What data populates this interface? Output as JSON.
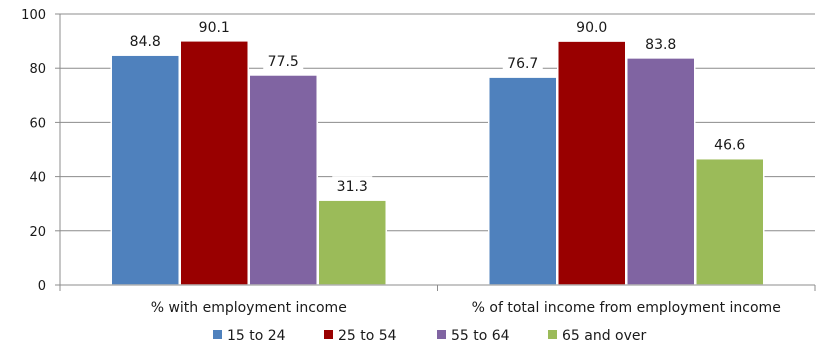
{
  "chart_data": {
    "type": "bar",
    "title": "",
    "xlabel": "",
    "ylabel": "",
    "ylim": [
      0,
      100
    ],
    "yticks": [
      0,
      20,
      40,
      60,
      80,
      100
    ],
    "grid": true,
    "legend_position": "bottom",
    "categories": [
      "% with employment income",
      "% of total income from employment income"
    ],
    "series": [
      {
        "name": "15 to 24",
        "color": "#4f81bd",
        "values": [
          84.8,
          76.7
        ],
        "labels": [
          "84.8",
          "76.7"
        ]
      },
      {
        "name": "25 to 54",
        "color": "#990000",
        "values": [
          90.1,
          90.0
        ],
        "labels": [
          "90.1",
          "90.0"
        ]
      },
      {
        "name": "55 to 64",
        "color": "#8064a2",
        "values": [
          77.5,
          83.8
        ],
        "labels": [
          "77.5",
          "83.8"
        ]
      },
      {
        "name": "65 and over",
        "color": "#9bbb59",
        "values": [
          31.3,
          46.6
        ],
        "labels": [
          "31.3",
          "46.6"
        ]
      }
    ]
  }
}
